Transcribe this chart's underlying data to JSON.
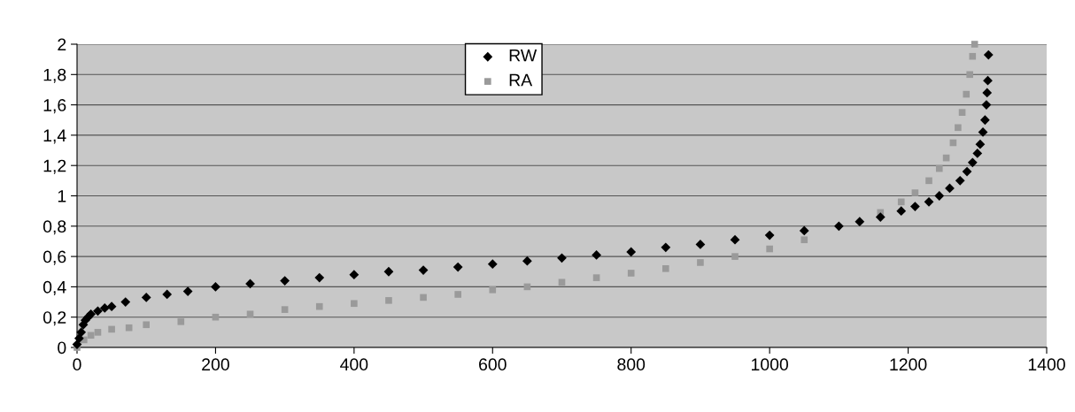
{
  "chart_data": {
    "type": "scatter",
    "legend": "top",
    "grid": "y",
    "xlim": [
      0,
      1400
    ],
    "xticks": [
      0,
      200,
      400,
      600,
      800,
      1000,
      1200,
      1400
    ],
    "ylim": [
      0,
      2
    ],
    "yticks": [
      0,
      {
        "value": 0.2,
        "label": "0,2"
      },
      {
        "value": 0.4,
        "label": "0,4"
      },
      {
        "value": 0.6,
        "label": "0,6"
      },
      {
        "value": 0.8,
        "label": "0,8"
      },
      1,
      {
        "value": 1.2,
        "label": "1,2"
      },
      {
        "value": 1.4,
        "label": "1,4"
      },
      {
        "value": 1.6,
        "label": "1,6"
      },
      {
        "value": 1.8,
        "label": "1,8"
      },
      2
    ],
    "series": [
      {
        "name": "RW",
        "color": "#000000",
        "marker": "diamond",
        "x": [
          0,
          3,
          6,
          9,
          12,
          16,
          20,
          30,
          40,
          50,
          70,
          100,
          130,
          160,
          200,
          250,
          300,
          350,
          400,
          450,
          500,
          550,
          600,
          650,
          700,
          750,
          800,
          850,
          900,
          950,
          1000,
          1050,
          1100,
          1130,
          1160,
          1190,
          1210,
          1230,
          1245,
          1260,
          1275,
          1285,
          1293,
          1300,
          1304,
          1308,
          1311,
          1313,
          1314,
          1315,
          1316
        ],
        "values": [
          0.02,
          0.06,
          0.1,
          0.15,
          0.18,
          0.2,
          0.22,
          0.24,
          0.26,
          0.27,
          0.3,
          0.33,
          0.35,
          0.37,
          0.4,
          0.42,
          0.44,
          0.46,
          0.48,
          0.5,
          0.51,
          0.53,
          0.55,
          0.57,
          0.59,
          0.61,
          0.63,
          0.66,
          0.68,
          0.71,
          0.74,
          0.77,
          0.8,
          0.83,
          0.86,
          0.9,
          0.93,
          0.96,
          1.0,
          1.05,
          1.1,
          1.16,
          1.22,
          1.28,
          1.34,
          1.42,
          1.5,
          1.6,
          1.68,
          1.76,
          1.93
        ]
      },
      {
        "name": "RA",
        "color": "#9a9a9a",
        "marker": "square",
        "x": [
          0,
          10,
          20,
          30,
          50,
          75,
          100,
          150,
          200,
          250,
          300,
          350,
          400,
          450,
          500,
          550,
          600,
          650,
          700,
          750,
          800,
          850,
          900,
          950,
          1000,
          1050,
          1160,
          1190,
          1210,
          1230,
          1245,
          1255,
          1265,
          1272,
          1278,
          1284,
          1289,
          1293,
          1296
        ],
        "values": [
          0.0,
          0.05,
          0.08,
          0.1,
          0.12,
          0.13,
          0.15,
          0.17,
          0.2,
          0.22,
          0.25,
          0.27,
          0.29,
          0.31,
          0.33,
          0.35,
          0.38,
          0.4,
          0.43,
          0.46,
          0.49,
          0.52,
          0.56,
          0.6,
          0.65,
          0.71,
          0.89,
          0.96,
          1.02,
          1.1,
          1.18,
          1.25,
          1.35,
          1.45,
          1.55,
          1.67,
          1.8,
          1.92,
          2.0
        ]
      }
    ]
  }
}
